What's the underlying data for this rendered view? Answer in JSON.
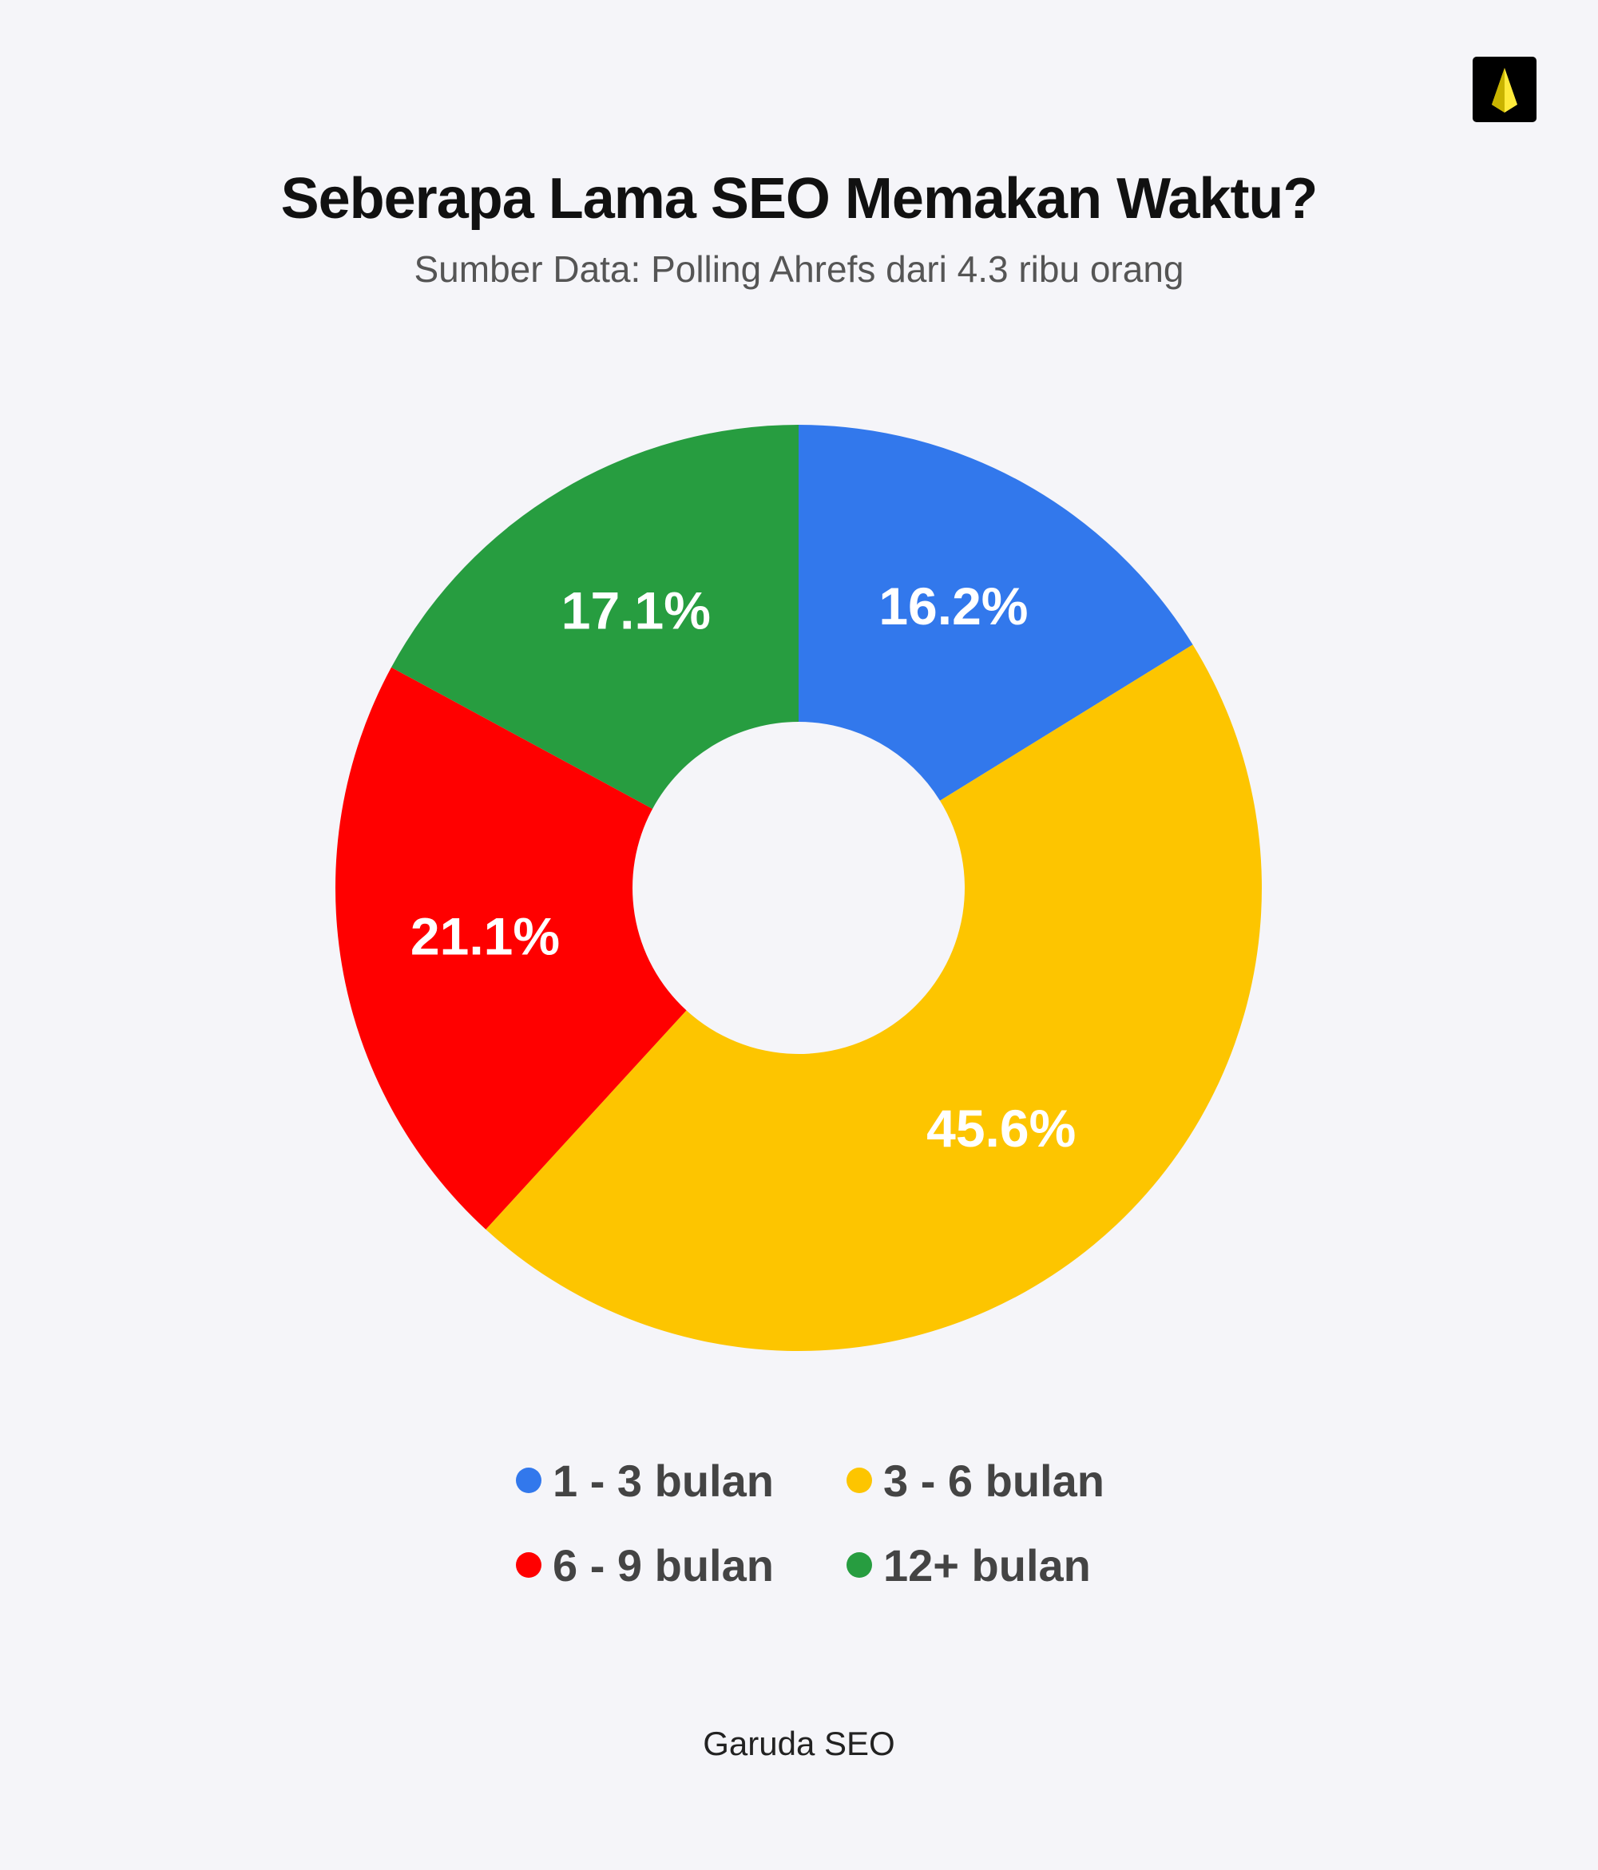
{
  "header": {
    "title": "Seberapa Lama SEO Memakan Waktu?",
    "subtitle": "Sumber Data: Polling Ahrefs dari 4.3 ribu orang"
  },
  "footer": {
    "brand": "Garuda SEO"
  },
  "logo": {
    "icon": "garuda-logo-icon",
    "background": "#000000",
    "accent": "#ffeb3b"
  },
  "chart_data": {
    "type": "pie",
    "variant": "donut",
    "title": "Seberapa Lama SEO Memakan Waktu?",
    "subtitle": "Sumber Data: Polling Ahrefs dari 4.3 ribu orang",
    "legend_position": "bottom",
    "categories": [
      "1 - 3 bulan",
      "3 - 6 bulan",
      "6 - 9 bulan",
      "12+ bulan"
    ],
    "values": [
      16.2,
      45.6,
      21.1,
      17.1
    ],
    "labels": [
      "16.2%",
      "45.6%",
      "21.1%",
      "17.1%"
    ],
    "colors": [
      "#3278ec",
      "#fdc500",
      "#ff0000",
      "#279d40"
    ]
  }
}
